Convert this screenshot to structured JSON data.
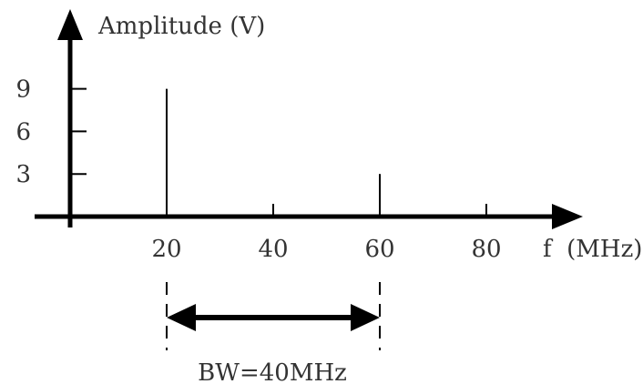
{
  "chart_data": {
    "type": "bar",
    "y_axis_label": "Amplitude (V)",
    "x_axis_label": "f  (MHz)",
    "y_ticks": [
      3,
      6,
      9
    ],
    "y_tick_labels": [
      "3",
      "6",
      "9"
    ],
    "x_ticks": [
      20,
      40,
      60,
      80
    ],
    "x_tick_labels": [
      "20",
      "40",
      "60",
      "80"
    ],
    "spectral_lines": [
      {
        "x": 20,
        "y": 9
      },
      {
        "x": 60,
        "y": 3
      }
    ],
    "bandwidth": {
      "from": 20,
      "to": 60,
      "label": "BW=40MHz"
    },
    "colors": {
      "axis": "#000000",
      "text": "#333333"
    }
  }
}
